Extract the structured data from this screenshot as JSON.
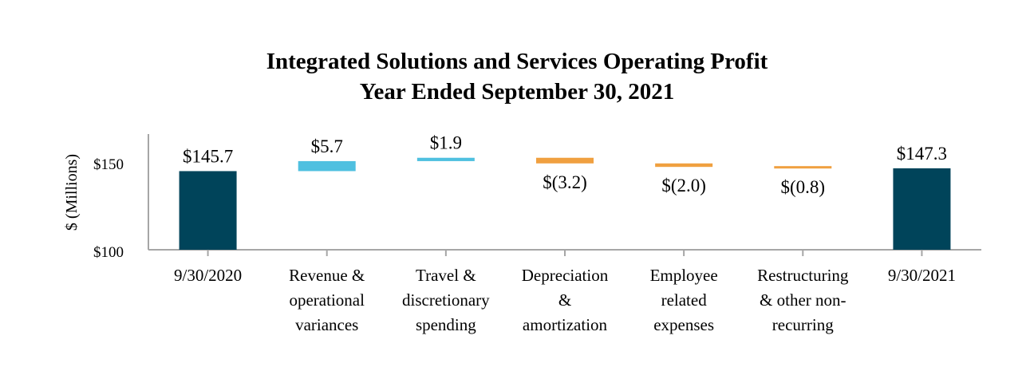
{
  "chart_data": {
    "type": "bar",
    "subtype": "waterfall",
    "title": "Integrated Solutions and Services Operating Profit",
    "subtitle": "Year Ended September 30, 2021",
    "ylabel": "$ (Millions)",
    "y_ticks": [
      "$100",
      "$150"
    ],
    "y_tick_values": [
      100,
      150
    ],
    "ylim": [
      100,
      165
    ],
    "grid": false,
    "categories": [
      [
        "9/30/2020"
      ],
      [
        "Revenue &",
        "operational",
        "variances"
      ],
      [
        "Travel &",
        "discretionary",
        "spending"
      ],
      [
        "Depreciation",
        "&",
        "amortization"
      ],
      [
        "Employee",
        "related",
        "expenses"
      ],
      [
        "Restructuring",
        "& other non-",
        "recurring"
      ],
      [
        "9/30/2021"
      ]
    ],
    "values": [
      145.7,
      5.7,
      1.9,
      -3.2,
      -2.0,
      -0.8,
      147.3
    ],
    "kinds": [
      "total",
      "delta",
      "delta",
      "delta",
      "delta",
      "delta",
      "total"
    ],
    "data_labels": [
      "$145.7",
      "$5.7",
      "$1.9",
      "$(3.2)",
      "$(2.0)",
      "$(0.8)",
      "$147.3"
    ],
    "colors": {
      "total": "#00445a",
      "increase": "#4fc0e0",
      "decrease": "#f0a040",
      "axis": "#a6a6a6"
    }
  }
}
